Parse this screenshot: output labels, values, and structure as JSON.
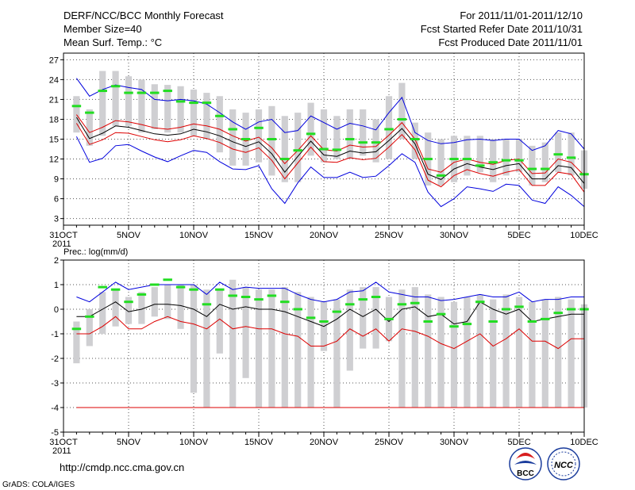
{
  "header": {
    "title": "DERF/NCC/BCC Monthly Forecast",
    "member_size": "Member Size=40",
    "variable1": "Mean Surf. Temp.: °C",
    "period": "For 2011/11/01-2011/12/10",
    "refer_date": "Fcst Started Refer Date 2011/10/31",
    "produced_date": "Fcst Produced Date 2011/11/01"
  },
  "footer": {
    "url": "http://cmdp.ncc.cma.gov.cn",
    "grads": "GrADS: COLA/IGES",
    "logo1_text": "BCC",
    "logo2_text": "NCC"
  },
  "colors": {
    "box": "#cfcfd2",
    "median": "#22dd22",
    "mean": "#000000",
    "inner": "#dd0000",
    "outer": "#0000dd",
    "grid": "#555555"
  },
  "chart_data": [
    {
      "type": "box-line",
      "title": "Mean Surf. Temp.: °C",
      "xlabel": "",
      "ylabel": "",
      "ylim": [
        2,
        28
      ],
      "yticks": [
        3,
        6,
        9,
        12,
        15,
        18,
        21,
        24,
        27
      ],
      "x_range": [
        0,
        40
      ],
      "x_tick_days": [
        0,
        5,
        10,
        15,
        20,
        25,
        30,
        35,
        40
      ],
      "x_tick_labels": [
        "31OCT",
        "5NOV",
        "10NOV",
        "15NOV",
        "20NOV",
        "25NOV",
        "30NOV",
        "5DEC",
        "10DEC"
      ],
      "x_year_label": "2011",
      "days": [
        1,
        2,
        3,
        4,
        5,
        6,
        7,
        8,
        9,
        10,
        11,
        12,
        13,
        14,
        15,
        16,
        17,
        18,
        19,
        20,
        21,
        22,
        23,
        24,
        25,
        26,
        27,
        28,
        29,
        30,
        31,
        32,
        33,
        34,
        35,
        36,
        37,
        38,
        39,
        40
      ],
      "series": [
        {
          "name": "upper",
          "role": "outer",
          "values": [
            24.2,
            21.5,
            22.5,
            23.2,
            22.8,
            22.5,
            21.0,
            20.8,
            21.0,
            20.8,
            20.3,
            19.0,
            17.6,
            16.5,
            17.6,
            18.0,
            16.0,
            16.3,
            18.5,
            17.5,
            16.5,
            17.4,
            17.0,
            16.4,
            19.0,
            21.3,
            16.0,
            14.8,
            14.3,
            14.5,
            14.9,
            15.0,
            14.8,
            15.0,
            15.0,
            13.3,
            14.0,
            16.3,
            15.8,
            13.5
          ]
        },
        {
          "name": "upper-spread",
          "role": "inner",
          "values": [
            18.7,
            16.0,
            16.8,
            17.8,
            17.6,
            17.2,
            16.7,
            16.5,
            16.8,
            17.3,
            17.0,
            16.5,
            15.5,
            14.7,
            15.3,
            13.7,
            11.3,
            13.3,
            15.5,
            13.4,
            13.2,
            14.1,
            13.8,
            13.9,
            15.6,
            17.5,
            15.0,
            10.5,
            10.0,
            11.5,
            12.0,
            11.5,
            11.2,
            11.8,
            12.0,
            9.8,
            9.9,
            12.0,
            11.5,
            9.5
          ]
        },
        {
          "name": "mean",
          "role": "mean",
          "values": [
            18.3,
            15.1,
            15.9,
            17.0,
            16.8,
            16.3,
            15.8,
            15.6,
            15.8,
            16.5,
            16.1,
            15.5,
            14.6,
            13.9,
            14.6,
            12.8,
            10.0,
            12.4,
            14.7,
            12.6,
            12.4,
            13.2,
            12.9,
            13.1,
            14.8,
            16.6,
            14.3,
            9.7,
            8.9,
            10.5,
            11.3,
            10.8,
            10.4,
            11.0,
            11.3,
            9.0,
            9.0,
            11.0,
            10.7,
            8.3
          ]
        },
        {
          "name": "lower-spread",
          "role": "inner",
          "values": [
            17.4,
            14.2,
            14.9,
            16.0,
            15.9,
            15.4,
            14.9,
            14.6,
            14.9,
            15.5,
            15.1,
            14.5,
            13.5,
            13.0,
            13.7,
            11.8,
            9.0,
            11.4,
            13.8,
            11.6,
            11.5,
            12.2,
            11.9,
            12.1,
            13.8,
            15.7,
            13.4,
            8.8,
            7.8,
            9.5,
            10.4,
            9.8,
            9.4,
            10.0,
            10.4,
            8.0,
            8.0,
            10.0,
            9.7,
            7.0
          ]
        },
        {
          "name": "lower",
          "role": "outer",
          "values": [
            15.4,
            11.5,
            12.1,
            14.0,
            14.2,
            13.2,
            12.3,
            11.6,
            12.5,
            13.3,
            13.0,
            11.6,
            10.5,
            10.4,
            11.0,
            7.5,
            5.3,
            8.4,
            10.8,
            9.2,
            9.2,
            10.0,
            9.2,
            9.4,
            11.0,
            12.8,
            11.5,
            7.0,
            4.8,
            6.0,
            7.8,
            7.5,
            7.1,
            8.2,
            8.0,
            5.8,
            5.3,
            7.8,
            6.5,
            4.8
          ]
        },
        {
          "name": "box-top",
          "role": "box",
          "values": [
            21.5,
            19.5,
            25.3,
            25.3,
            24.5,
            24.0,
            23.3,
            23.2,
            23.0,
            22.5,
            22.0,
            21.5,
            19.5,
            19.0,
            19.5,
            20.0,
            18.5,
            19.0,
            20.5,
            19.5,
            18.5,
            19.5,
            19.5,
            18.0,
            21.5,
            23.5,
            17.5,
            16.0,
            15.0,
            15.5,
            15.5,
            15.5,
            15.0,
            15.0,
            15.0,
            14.0,
            14.5,
            16.0,
            16.0,
            13.3
          ]
        },
        {
          "name": "box-bottom",
          "role": "box",
          "values": [
            16.0,
            14.0,
            15.5,
            17.0,
            17.0,
            16.0,
            16.5,
            16.0,
            16.0,
            15.5,
            15.0,
            13.0,
            11.0,
            11.0,
            11.5,
            9.5,
            8.5,
            8.5,
            12.5,
            11.5,
            12.0,
            12.0,
            12.5,
            11.5,
            12.0,
            15.0,
            12.0,
            8.0,
            8.0,
            8.5,
            9.5,
            10.0,
            8.5,
            9.5,
            10.0,
            8.0,
            8.5,
            10.0,
            9.5,
            7.5
          ]
        },
        {
          "name": "median",
          "role": "median",
          "values": [
            20.0,
            19.0,
            22.3,
            23.0,
            22.0,
            22.0,
            22.0,
            22.3,
            20.7,
            20.5,
            20.5,
            18.5,
            16.5,
            15.0,
            16.7,
            15.0,
            12.0,
            13.3,
            15.8,
            13.5,
            13.4,
            15.0,
            14.5,
            14.5,
            16.5,
            18.0,
            15.0,
            12.0,
            9.5,
            12.0,
            12.0,
            11.0,
            11.5,
            11.8,
            11.8,
            10.5,
            10.5,
            12.7,
            12.2,
            9.7
          ]
        }
      ]
    },
    {
      "type": "box-line",
      "title": "Prec.: log(mm/d)",
      "xlabel": "",
      "ylabel": "",
      "ylim": [
        -5,
        2
      ],
      "yticks": [
        -5,
        -4,
        -3,
        -2,
        -1,
        0,
        1,
        2
      ],
      "x_range": [
        0,
        40
      ],
      "x_tick_days": [
        0,
        5,
        10,
        15,
        20,
        25,
        30,
        35,
        40
      ],
      "x_tick_labels": [
        "31OCT",
        "5NOV",
        "10NOV",
        "15NOV",
        "20NOV",
        "25NOV",
        "30NOV",
        "5DEC",
        "10DEC"
      ],
      "x_year_label": "2011",
      "days": [
        1,
        2,
        3,
        4,
        5,
        6,
        7,
        8,
        9,
        10,
        11,
        12,
        13,
        14,
        15,
        16,
        17,
        18,
        19,
        20,
        21,
        22,
        23,
        24,
        25,
        26,
        27,
        28,
        29,
        30,
        31,
        32,
        33,
        34,
        35,
        36,
        37,
        38,
        39,
        40
      ],
      "series": [
        {
          "name": "upper",
          "role": "outer",
          "values": [
            0.5,
            0.3,
            0.7,
            1.1,
            0.8,
            0.9,
            1.0,
            1.0,
            1.0,
            1.0,
            0.6,
            1.1,
            0.8,
            0.9,
            0.85,
            0.85,
            0.85,
            0.6,
            0.4,
            0.3,
            0.4,
            0.7,
            0.75,
            1.1,
            0.7,
            0.6,
            0.5,
            0.5,
            0.35,
            0.4,
            0.5,
            0.6,
            0.5,
            0.5,
            0.7,
            0.3,
            0.4,
            0.4,
            0.5,
            0.5
          ]
        },
        {
          "name": "mean",
          "role": "mean",
          "values": [
            -0.3,
            -0.3,
            0.0,
            0.3,
            -0.1,
            0.0,
            0.2,
            0.2,
            0.15,
            0.0,
            -0.3,
            0.2,
            0.0,
            0.1,
            0.0,
            0.0,
            -0.1,
            -0.3,
            -0.5,
            -0.7,
            -0.4,
            0.0,
            -0.3,
            0.0,
            -0.5,
            0.0,
            0.1,
            -0.3,
            -0.2,
            -0.6,
            -0.5,
            0.3,
            0.0,
            -0.2,
            0.0,
            -0.5,
            -0.4,
            -0.3,
            -0.2,
            -0.2
          ]
        },
        {
          "name": "lower",
          "role": "inner",
          "values": [
            -1.0,
            -1.0,
            -0.7,
            -0.3,
            -0.8,
            -0.8,
            -0.5,
            -0.3,
            -0.5,
            -0.6,
            -0.8,
            -0.4,
            -0.8,
            -0.7,
            -0.8,
            -0.8,
            -1.0,
            -1.1,
            -1.5,
            -1.5,
            -1.3,
            -0.8,
            -1.1,
            -0.8,
            -1.3,
            -0.8,
            -0.9,
            -1.1,
            -1.4,
            -1.6,
            -1.3,
            -1.0,
            -1.5,
            -1.2,
            -0.8,
            -1.3,
            -1.3,
            -1.6,
            -1.2,
            -1.2
          ]
        },
        {
          "name": "floor",
          "role": "inner",
          "values": [
            -4,
            -4,
            -4,
            -4,
            -4,
            -4,
            -4,
            -4,
            -4,
            -4,
            -4,
            -4,
            -4,
            -4,
            -4,
            -4,
            -4,
            -4,
            -4,
            -4,
            -4,
            -4,
            -4,
            -4,
            -4,
            -4,
            -4,
            -4,
            -4,
            -4,
            -4,
            -4,
            -4,
            -4,
            -4,
            -4,
            -4,
            -4,
            -4,
            -4
          ]
        },
        {
          "name": "box-top",
          "role": "box",
          "values": [
            -0.5,
            0.0,
            0.7,
            0.8,
            0.5,
            0.7,
            0.9,
            1.0,
            1.0,
            1.0,
            0.8,
            0.8,
            1.2,
            0.9,
            0.8,
            0.8,
            0.9,
            0.7,
            0.5,
            0.3,
            0.4,
            0.8,
            0.9,
            0.9,
            0.5,
            0.8,
            0.9,
            0.6,
            0.5,
            0.3,
            0.5,
            0.6,
            0.4,
            0.6,
            0.5,
            0.3,
            0.4,
            0.5,
            0.4,
            0.2
          ]
        },
        {
          "name": "box-bottom",
          "role": "box",
          "values": [
            -2.2,
            -1.5,
            -1.0,
            -0.7,
            -0.6,
            -0.6,
            -0.3,
            -0.4,
            -0.8,
            -3.4,
            -4.0,
            -1.8,
            -4.0,
            -2.8,
            -4.0,
            -4.0,
            -4.0,
            -4.0,
            -4.0,
            -1.7,
            -4.0,
            -2.5,
            -1.6,
            -1.6,
            -1.3,
            -4.0,
            -4.0,
            -4.0,
            -4.0,
            -4.0,
            -4.0,
            -4.0,
            -4.0,
            -4.0,
            -4.0,
            -4.0,
            -4.0,
            -4.0,
            -4.0,
            -4.0
          ]
        },
        {
          "name": "median",
          "role": "median",
          "values": [
            -0.8,
            -0.3,
            0.9,
            0.8,
            0.3,
            0.6,
            1.0,
            1.2,
            0.9,
            0.8,
            0.2,
            0.8,
            0.55,
            0.5,
            0.4,
            0.55,
            0.3,
            0.0,
            -0.35,
            -0.5,
            -0.1,
            0.2,
            0.4,
            0.5,
            -0.4,
            0.2,
            0.25,
            -0.5,
            -0.2,
            -0.7,
            -0.6,
            0.3,
            -0.5,
            0.0,
            0.1,
            -0.5,
            -0.4,
            -0.15,
            0.0,
            0.0
          ]
        }
      ]
    }
  ]
}
